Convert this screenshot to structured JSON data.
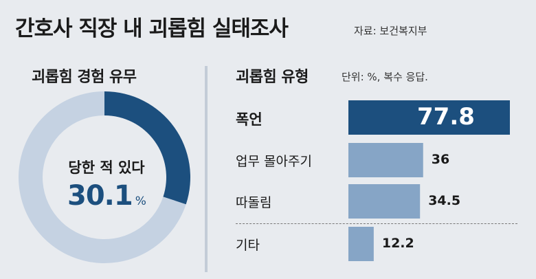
{
  "title": "간호사 직장 내 괴롭힘 실태조사",
  "source": "자료: 보건복지부",
  "colors": {
    "dark_blue": "#1c4f7e",
    "light_blue": "#86a5c6",
    "ring_light": "#c5d2e2",
    "background": "#e8ebef"
  },
  "chart_data": [
    {
      "type": "pie",
      "title": "괴롭힘 경험 유무",
      "slices": [
        {
          "label": "당한 적 있다",
          "value": 30.1
        },
        {
          "label": "",
          "value": 69.9
        }
      ],
      "center_label": "당한 적 있다",
      "center_value": "30.1",
      "center_unit": "%"
    },
    {
      "type": "bar",
      "orientation": "horizontal",
      "title": "괴롭힘 유형",
      "unit_note": "단위: %, 복수 응답.",
      "categories": [
        "폭언",
        "업무 몰아주기",
        "따돌림",
        "기타"
      ],
      "values": [
        77.8,
        36,
        34.5,
        12.2
      ],
      "value_labels": [
        "77.8",
        "36",
        "34.5",
        "12.2"
      ]
    }
  ]
}
